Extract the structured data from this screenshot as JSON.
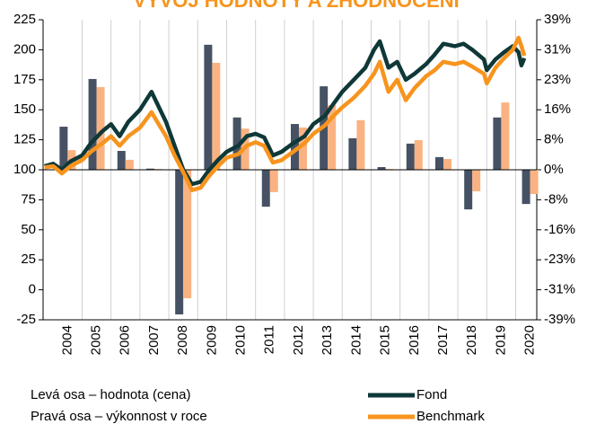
{
  "chart_data": {
    "type": "combo",
    "title": "VÝVOJ HODNOTY A ZHODNOCENÍ",
    "annotations": [
      "Levá osa – hodnota (cena)",
      "Pravá osa – výkonnost v roce"
    ],
    "categories": [
      "2004",
      "2005",
      "2006",
      "2007",
      "2008",
      "2009",
      "2010",
      "2011",
      "2012",
      "2013",
      "2014",
      "2015",
      "2016",
      "2017",
      "2018",
      "2019",
      "2020"
    ],
    "xlim": [
      2003.65,
      2020.73
    ],
    "x": [
      2003.7,
      2004.0,
      2004.3,
      2004.6,
      2005.0,
      2005.3,
      2005.7,
      2006.0,
      2006.3,
      2006.6,
      2007.0,
      2007.4,
      2007.6,
      2007.9,
      2008.2,
      2008.5,
      2008.8,
      2009.1,
      2009.4,
      2009.7,
      2010.0,
      2010.4,
      2010.7,
      2011.0,
      2011.3,
      2011.6,
      2011.9,
      2012.3,
      2012.7,
      2013.0,
      2013.4,
      2013.7,
      2014.0,
      2014.4,
      2014.8,
      2015.1,
      2015.3,
      2015.6,
      2015.9,
      2016.2,
      2016.5,
      2016.9,
      2017.2,
      2017.5,
      2017.9,
      2018.2,
      2018.5,
      2018.9,
      2019.0,
      2019.3,
      2019.6,
      2019.9,
      2020.1,
      2020.2,
      2020.3
    ],
    "series": [
      {
        "name": "Fond",
        "type": "line",
        "axis": "y",
        "color": "#0f3838",
        "values": [
          103,
          105,
          100,
          107,
          112,
          122,
          132,
          138,
          128,
          140,
          150,
          165,
          155,
          140,
          120,
          100,
          88,
          90,
          100,
          108,
          115,
          120,
          128,
          130,
          127,
          112,
          115,
          122,
          128,
          138,
          145,
          155,
          165,
          175,
          185,
          200,
          207,
          185,
          190,
          175,
          180,
          188,
          196,
          205,
          203,
          205,
          200,
          192,
          183,
          192,
          198,
          203,
          198,
          187,
          193
        ]
      },
      {
        "name": "Benchmark",
        "type": "line",
        "axis": "y",
        "color": "#f7941d",
        "values": [
          102,
          103,
          97,
          103,
          108,
          115,
          122,
          128,
          120,
          128,
          135,
          148,
          140,
          128,
          112,
          98,
          83,
          85,
          95,
          103,
          110,
          113,
          120,
          123,
          120,
          106,
          108,
          115,
          122,
          130,
          137,
          145,
          152,
          160,
          170,
          180,
          190,
          165,
          175,
          158,
          168,
          178,
          183,
          190,
          188,
          190,
          186,
          180,
          172,
          185,
          193,
          200,
          210,
          203,
          195
        ]
      },
      {
        "type": "bar",
        "axis": "y2",
        "color": "#465263",
        "values": [
          11.2,
          23.6,
          4.9,
          0.3,
          -37.6,
          32.5,
          13.6,
          -9.6,
          11.9,
          21.7,
          8.2,
          0.7,
          6.8,
          3.3,
          -10.3,
          13.6,
          -8.9
        ]
      },
      {
        "type": "bar",
        "axis": "y2",
        "color": "#f9b382",
        "values": [
          5.1,
          21.5,
          2.6,
          0.2,
          -33.4,
          27.8,
          10.7,
          -5.8,
          11.0,
          16.8,
          12.9,
          0.2,
          7.7,
          2.8,
          -5.6,
          17.5,
          -6.3
        ]
      }
    ],
    "ylim": [
      -25,
      225
    ],
    "yticks": [
      -25,
      0,
      25,
      50,
      75,
      100,
      125,
      150,
      175,
      200,
      225
    ],
    "y2lim": [
      -39,
      39
    ],
    "y2ticks": [
      {
        "value": -39,
        "label": "-39%"
      },
      {
        "value": -31.2,
        "label": "-31%"
      },
      {
        "value": -23.4,
        "label": "-23%"
      },
      {
        "value": -15.6,
        "label": "-16%"
      },
      {
        "value": -7.8,
        "label": "-8%"
      },
      {
        "value": 0,
        "label": "0%"
      },
      {
        "value": 7.8,
        "label": "8%"
      },
      {
        "value": 15.6,
        "label": "16%"
      },
      {
        "value": 23.4,
        "label": "23%"
      },
      {
        "value": 31.2,
        "label": "31%"
      },
      {
        "value": 39,
        "label": "39%"
      }
    ]
  }
}
